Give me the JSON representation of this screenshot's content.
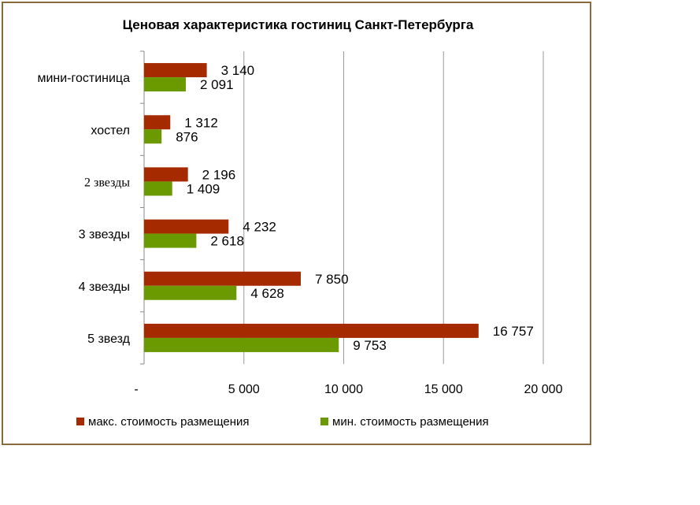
{
  "chart_data": {
    "type": "bar",
    "orientation": "horizontal",
    "title": "Ценовая характеристика гостиниц Санкт-Петербурга",
    "categories": [
      "мини-гостиница",
      "хостел",
      "2 звезды",
      "3 звезды",
      "4 звезды",
      "5 звезд"
    ],
    "series": [
      {
        "name": "макс. стоимость размещения",
        "color": "#a52a00",
        "values": [
          3140,
          1312,
          2196,
          4232,
          7850,
          16757
        ],
        "labels": [
          "3 140",
          "1 312",
          "2 196",
          "4 232",
          "7 850",
          "16 757"
        ]
      },
      {
        "name": "мин. стоимость размещения",
        "color": "#6a9a00",
        "values": [
          2091,
          876,
          1409,
          2618,
          4628,
          9753
        ],
        "labels": [
          "2 091",
          "876",
          "1 409",
          "2 618",
          "4 628",
          "9 753"
        ]
      }
    ],
    "xlim": [
      0,
      20000
    ],
    "xticks": [
      0,
      5000,
      10000,
      15000,
      20000
    ],
    "xtick_labels": [
      "-",
      "5 000",
      "10 000",
      "15 000",
      "20 000"
    ],
    "grid": true,
    "legend_position": "bottom"
  }
}
